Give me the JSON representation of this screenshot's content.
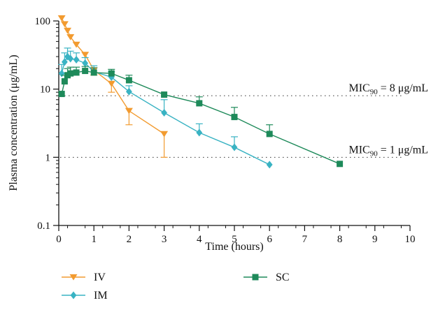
{
  "chart_data": {
    "type": "line",
    "xlabel": "Time (hours)",
    "ylabel": "Plasma concentration (μg/mL)",
    "xlim": [
      0,
      10
    ],
    "ylim": [
      0.1,
      100
    ],
    "y_scale": "log",
    "x_ticks": [
      "0",
      "1",
      "2",
      "3",
      "4",
      "5",
      "6",
      "7",
      "8",
      "9",
      "10"
    ],
    "y_ticks": [
      {
        "value": 0.1,
        "label": "0.1"
      },
      {
        "value": 1,
        "label": "1"
      },
      {
        "value": 10,
        "label": "10"
      },
      {
        "value": 100,
        "label": "100"
      }
    ],
    "grid": false,
    "legend_position": "bottom",
    "series": [
      {
        "name": "IV",
        "color": "#F29B30",
        "marker": "triangle-down",
        "x": [
          0.083,
          0.167,
          0.25,
          0.333,
          0.5,
          0.75,
          1,
          1.5,
          2,
          3
        ],
        "y": [
          110,
          90,
          72,
          58,
          45,
          32,
          19,
          12,
          4.8,
          2.2
        ],
        "error": [
          0,
          0,
          0,
          0,
          0,
          0,
          3,
          3,
          1.8,
          1.2
        ]
      },
      {
        "name": "IM",
        "color": "#39B3C3",
        "marker": "diamond",
        "x": [
          0.083,
          0.167,
          0.25,
          0.333,
          0.5,
          0.75,
          1,
          1.5,
          2,
          3,
          4,
          5,
          6
        ],
        "y": [
          17,
          25,
          30,
          28,
          27,
          24,
          18,
          15,
          9.2,
          4.5,
          2.3,
          1.4,
          0.78
        ],
        "error": [
          6,
          9,
          10,
          8,
          7,
          5,
          4,
          3,
          2,
          2.5,
          0.8,
          0.6,
          0
        ]
      },
      {
        "name": "SC",
        "color": "#1E8A5A",
        "marker": "square",
        "x": [
          0.083,
          0.167,
          0.25,
          0.333,
          0.5,
          0.75,
          1,
          1.5,
          2,
          3,
          4,
          5,
          6,
          8
        ],
        "y": [
          8.5,
          13,
          16,
          17,
          17.5,
          18.5,
          17.5,
          17,
          13.5,
          8.3,
          6.2,
          3.9,
          2.2,
          0.8
        ],
        "error": [
          0,
          3,
          4,
          4,
          3.5,
          3,
          3,
          2.5,
          2.5,
          0,
          1.5,
          1.5,
          0.8,
          0
        ]
      }
    ],
    "annotations": [
      {
        "text_main": "MIC",
        "sub": "90",
        "text_rest": " = 8 μg/mL",
        "y": 8
      },
      {
        "text_main": "MIC",
        "sub": "90",
        "text_rest": " = 1 μg/mL",
        "y": 1
      }
    ]
  }
}
